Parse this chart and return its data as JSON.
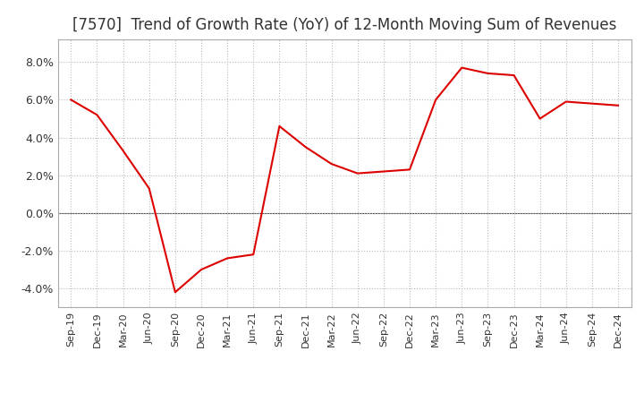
{
  "title": "[7570]  Trend of Growth Rate (YoY) of 12-Month Moving Sum of Revenues",
  "title_fontsize": 12,
  "line_color": "#dd0000",
  "background_color": "#ffffff",
  "grid_color": "#bbbbbb",
  "zero_line_color": "#555555",
  "ylim": [
    -0.05,
    0.092
  ],
  "yticks": [
    -0.04,
    -0.02,
    0.0,
    0.02,
    0.04,
    0.06,
    0.08
  ],
  "ytick_labels": [
    "-4.0%",
    "-2.0%",
    "0.0%",
    "2.0%",
    "4.0%",
    "6.0%",
    "8.0%"
  ],
  "x_labels": [
    "Sep-19",
    "Dec-19",
    "Mar-20",
    "Jun-20",
    "Sep-20",
    "Dec-20",
    "Mar-21",
    "Jun-21",
    "Sep-21",
    "Dec-21",
    "Mar-22",
    "Jun-22",
    "Sep-22",
    "Dec-22",
    "Mar-23",
    "Jun-23",
    "Sep-23",
    "Dec-23",
    "Mar-24",
    "Jun-24",
    "Sep-24",
    "Dec-24"
  ],
  "y_values": [
    0.06,
    0.052,
    0.033,
    0.013,
    -0.042,
    -0.03,
    -0.024,
    -0.022,
    0.046,
    0.035,
    0.026,
    0.021,
    0.022,
    0.023,
    0.06,
    0.077,
    0.074,
    0.073,
    0.05,
    0.059,
    0.058,
    0.057
  ]
}
